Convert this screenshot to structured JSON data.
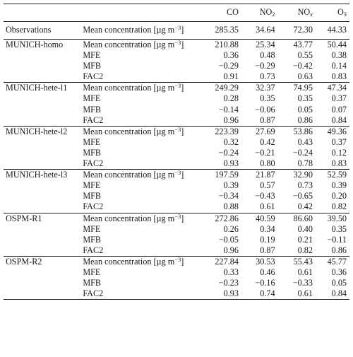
{
  "columns": {
    "co": "CO",
    "no2_base": "NO",
    "no2_sub": "2",
    "nox_base": "NO",
    "nox_sub": "x",
    "o3_base": "O",
    "o3_sub": "3"
  },
  "unit_label": "Mean concentration [µg m",
  "unit_exp": "−3",
  "unit_close": "]",
  "observations": {
    "label": "Observations",
    "values": [
      "285.35",
      "34.64",
      "72.30",
      "44.33"
    ]
  },
  "groups": [
    {
      "name": "MUNICH-homo",
      "rows": [
        {
          "metric": "",
          "values": [
            "210.88",
            "25.34",
            "43.77",
            "50.44"
          ]
        },
        {
          "metric": "MFE",
          "values": [
            "0.36",
            "0.48",
            "0.55",
            "0.38"
          ]
        },
        {
          "metric": "MFB",
          "values": [
            "−0.29",
            "−0.29",
            "−0.42",
            "0.14"
          ]
        },
        {
          "metric": "FAC2",
          "values": [
            "0.91",
            "0.73",
            "0.63",
            "0.83"
          ]
        }
      ]
    },
    {
      "name": "MUNICH-hete-l1",
      "rows": [
        {
          "metric": "",
          "values": [
            "249.29",
            "32.37",
            "74.95",
            "47.34"
          ]
        },
        {
          "metric": "MFE",
          "values": [
            "0.28",
            "0.35",
            "0.35",
            "0.37"
          ]
        },
        {
          "metric": "MFB",
          "values": [
            "−0.14",
            "−0.06",
            "0.05",
            "0.07"
          ]
        },
        {
          "metric": "FAC2",
          "values": [
            "0.96",
            "0.87",
            "0.86",
            "0.84"
          ]
        }
      ]
    },
    {
      "name": "MUNICH-hete-l2",
      "rows": [
        {
          "metric": "",
          "values": [
            "223.39",
            "27.69",
            "53.86",
            "49.36"
          ]
        },
        {
          "metric": "MFE",
          "values": [
            "0.32",
            "0.42",
            "0.43",
            "0.37"
          ]
        },
        {
          "metric": "MFB",
          "values": [
            "−0.24",
            "−0.21",
            "−0.24",
            "0.12"
          ]
        },
        {
          "metric": "FAC2",
          "values": [
            "0.93",
            "0.80",
            "0.78",
            "0.83"
          ]
        }
      ]
    },
    {
      "name": "MUNICH-hete-l3",
      "rows": [
        {
          "metric": "",
          "values": [
            "197.59",
            "21.87",
            "32.90",
            "52.59"
          ]
        },
        {
          "metric": "MFE",
          "values": [
            "0.39",
            "0.57",
            "0.73",
            "0.39"
          ]
        },
        {
          "metric": "MFB",
          "values": [
            "−0.34",
            "−0.43",
            "−0.65",
            "0.20"
          ]
        },
        {
          "metric": "FAC2",
          "values": [
            "0.88",
            "0.61",
            "0.42",
            "0.82"
          ]
        }
      ]
    },
    {
      "name": "OSPM-R1",
      "rows": [
        {
          "metric": "",
          "values": [
            "272.86",
            "40.59",
            "86.60",
            "39.50"
          ]
        },
        {
          "metric": "MFE",
          "values": [
            "0.26",
            "0.34",
            "0.40",
            "0.35"
          ]
        },
        {
          "metric": "MFB",
          "values": [
            "−0.05",
            "0.19",
            "0.21",
            "−0.11"
          ]
        },
        {
          "metric": "FAC2",
          "values": [
            "0.96",
            "0.87",
            "0.82",
            "0.86"
          ]
        }
      ]
    },
    {
      "name": "OSPM-R2",
      "rows": [
        {
          "metric": "",
          "values": [
            "227.84",
            "30.53",
            "55.43",
            "45.77"
          ]
        },
        {
          "metric": "MFE",
          "values": [
            "0.33",
            "0.46",
            "0.61",
            "0.36"
          ]
        },
        {
          "metric": "MFB",
          "values": [
            "−0.23",
            "−0.16",
            "−0.33",
            "0.05"
          ]
        },
        {
          "metric": "FAC2",
          "values": [
            "0.93",
            "0.74",
            "0.61",
            "0.84"
          ]
        }
      ]
    }
  ]
}
